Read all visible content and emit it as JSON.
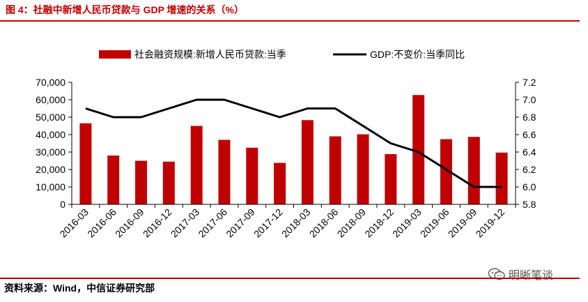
{
  "header": {
    "title": "图 4：社融中新增人民币贷款与 GDP 增速的关系（%）"
  },
  "footer": {
    "source": "资料来源：Wind，中信证券研究部"
  },
  "watermark": {
    "text": "明晰笔谈",
    "icon": "wechat-icon"
  },
  "colors": {
    "accent": "#c00000",
    "bar": "#c00000",
    "line": "#000000"
  },
  "chart_data": {
    "type": "bar",
    "categories": [
      "2016-03",
      "2016-06",
      "2016-09",
      "2016-12",
      "2017-03",
      "2017-06",
      "2017-09",
      "2017-12",
      "2018-03",
      "2018-06",
      "2018-09",
      "2018-12",
      "2019-03",
      "2019-06",
      "2019-09",
      "2019-12"
    ],
    "series": [
      {
        "name": "社会融资规模:新增人民币贷款:当季",
        "type": "bar",
        "axis": "left",
        "values": [
          46500,
          28000,
          25000,
          24500,
          45000,
          37000,
          32500,
          23800,
          48300,
          39000,
          40200,
          28800,
          62700,
          37400,
          38700,
          29700
        ]
      },
      {
        "name": "GDP:不变价:当季同比",
        "type": "line",
        "axis": "right",
        "values": [
          6.9,
          6.8,
          6.8,
          6.9,
          7.0,
          7.0,
          6.9,
          6.8,
          6.9,
          6.9,
          6.7,
          6.5,
          6.4,
          6.2,
          6.0,
          6.0
        ]
      }
    ],
    "y_left": {
      "min": 0,
      "max": 70000,
      "ticks": [
        0,
        10000,
        20000,
        30000,
        40000,
        50000,
        60000,
        70000
      ],
      "tick_labels": [
        "0",
        "10,000",
        "20,000",
        "30,000",
        "40,000",
        "50,000",
        "60,000",
        "70,000"
      ]
    },
    "y_right": {
      "min": 5.8,
      "max": 7.2,
      "ticks": [
        5.8,
        6.0,
        6.2,
        6.4,
        6.6,
        6.8,
        7.0,
        7.2
      ],
      "tick_labels": [
        "5.8",
        "6.0",
        "6.2",
        "6.4",
        "6.6",
        "6.8",
        "7.0",
        "7.2"
      ]
    },
    "legend": [
      "社会融资规模:新增人民币贷款:当季",
      "GDP:不变价:当季同比"
    ],
    "legend_position": "top",
    "grid": false
  }
}
